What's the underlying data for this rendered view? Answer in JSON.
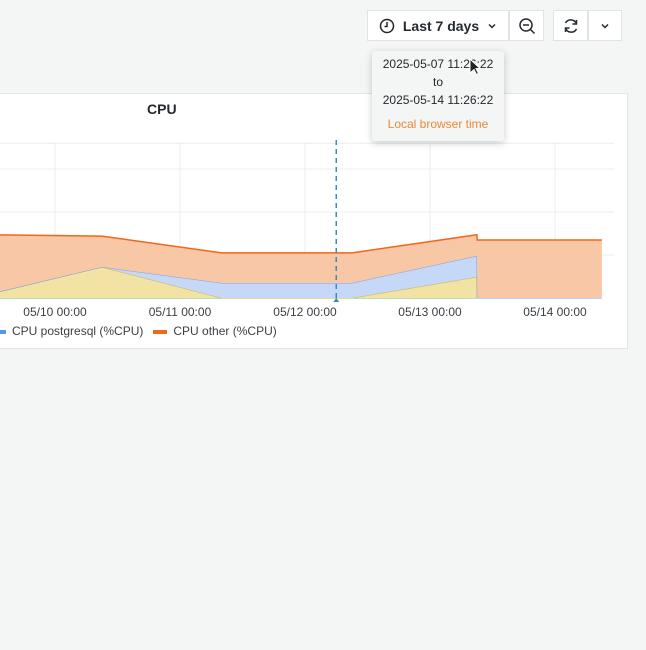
{
  "toolbar": {
    "time_range_label": "Last 7 days",
    "icons": {
      "time": "clock-icon",
      "caret": "chevron-down-icon",
      "zoom": "zoom-out-icon",
      "refresh": "refresh-icon",
      "refresh_menu": "chevron-down-icon"
    }
  },
  "tooltip": {
    "from": "2025-05-07 11:26:22",
    "to_word": "to",
    "to": "2025-05-14 11:26:22",
    "timezone": "Local browser time"
  },
  "panel": {
    "title": "CPU"
  },
  "colors": {
    "yellow": "#f2e3a4",
    "blue": "#c5d8f7",
    "orange": "#f8c7a6",
    "orange_line": "#f2661a",
    "blue_line": "#5794f2",
    "cursor": "#3a8eb5"
  },
  "chart_data": {
    "type": "area",
    "stacked": true,
    "title": "CPU",
    "x": [
      "2025-05-09 13:00",
      "2025-05-10 09:00",
      "2025-05-11 08:00",
      "2025-05-12 09:00",
      "2025-05-13 09:00",
      "2025-05-13 09:05",
      "2025-05-14 09:00"
    ],
    "x_ticks": [
      "05/10 00:00",
      "05/11 00:00",
      "05/12 00:00",
      "05/13 00:00",
      "05/14 00:00"
    ],
    "series": [
      {
        "values": [
          0,
          0,
          0,
          0,
          0,
          0,
          0
        ],
        "color": "#73bf69"
      },
      {
        "values": [
          0.14,
          0.72,
          0,
          0,
          0.49,
          0,
          0
        ],
        "color": "#f2e3a4"
      },
      {
        "name": "CPU postgresql (%CPU)",
        "values": [
          0,
          0,
          0.35,
          0.35,
          0.49,
          0,
          0
        ],
        "color": "#5794f2"
      },
      {
        "name": "CPU other (%CPU)",
        "values": [
          1.33,
          0.72,
          0.7,
          0.7,
          0.49,
          1.35,
          1.35
        ],
        "color": "#f2661a"
      }
    ],
    "ylim": [
      0,
      3.6
    ],
    "grid": true,
    "cursor_x": "2025-05-12 06:00",
    "legend": "bottom-left"
  }
}
